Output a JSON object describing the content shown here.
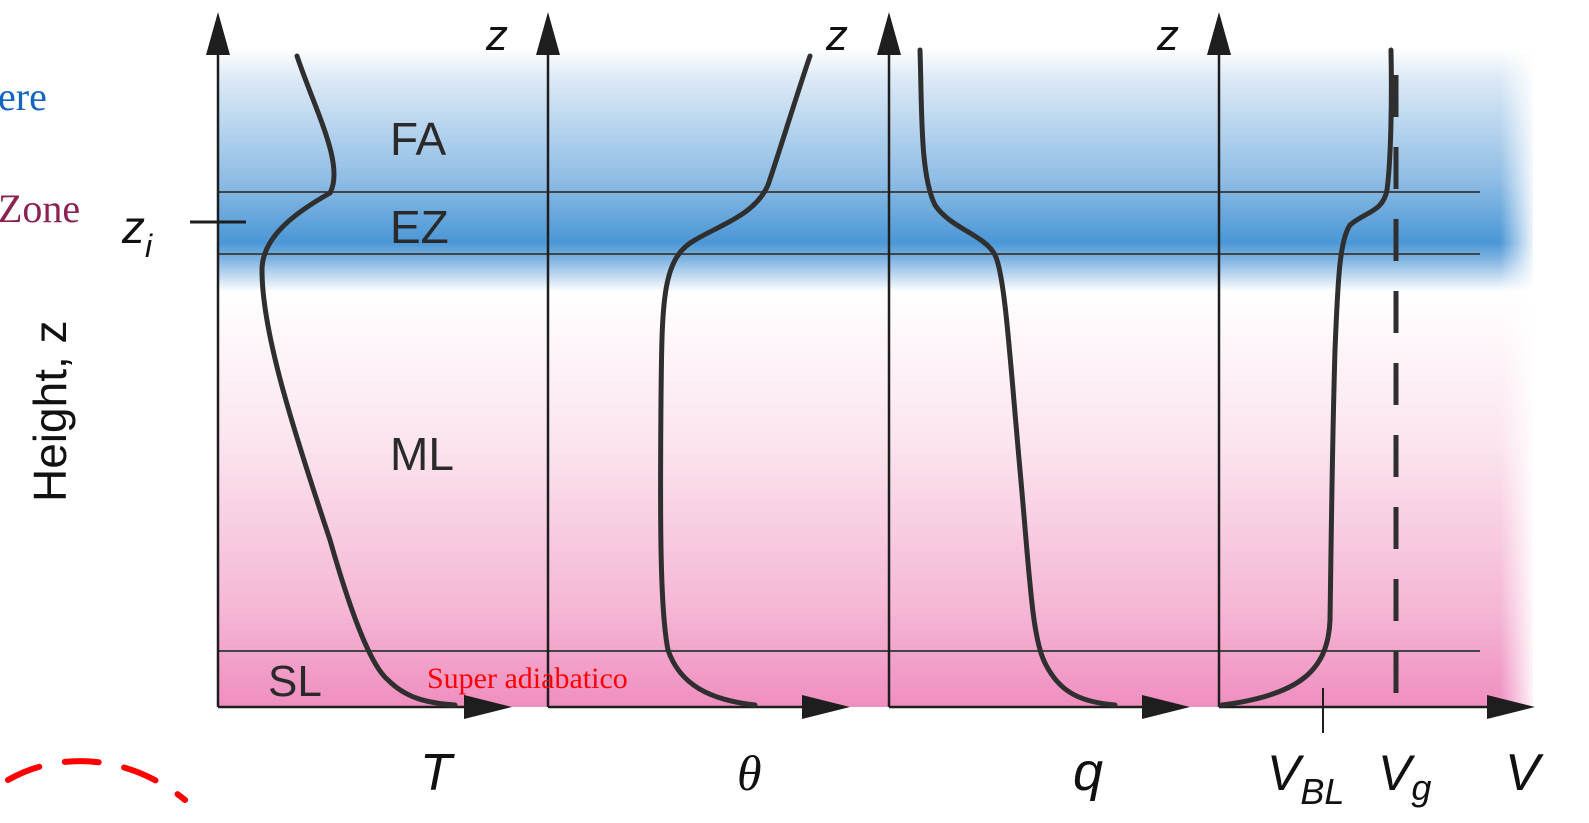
{
  "partial_labels": {
    "atmosphere_fragment": "ere",
    "zone_fragment": "Zone"
  },
  "axis": {
    "height_label": "Height, z",
    "zi_label": "z",
    "zi_sub": "i",
    "z_label": "z"
  },
  "layers": {
    "free_atmosphere": "FA",
    "entrainment_zone": "EZ",
    "mixed_layer": "ML",
    "surface_layer": "SL"
  },
  "annotation": "Super adiabatico",
  "variables": {
    "temperature": "T",
    "potential_temperature": "θ",
    "humidity": "q",
    "wind_bl": "V",
    "wind_bl_sub": "BL",
    "wind_geo": "V",
    "wind_geo_sub": "g",
    "wind": "V"
  },
  "colors": {
    "sky_blue": "#4b97d6",
    "pink": "#ef8ec0",
    "curve": "#2f2f2f",
    "axis": "#1e1e1e",
    "blue_text": "#1565c0",
    "maroon_text": "#8b2252",
    "red": "#ff0000"
  }
}
